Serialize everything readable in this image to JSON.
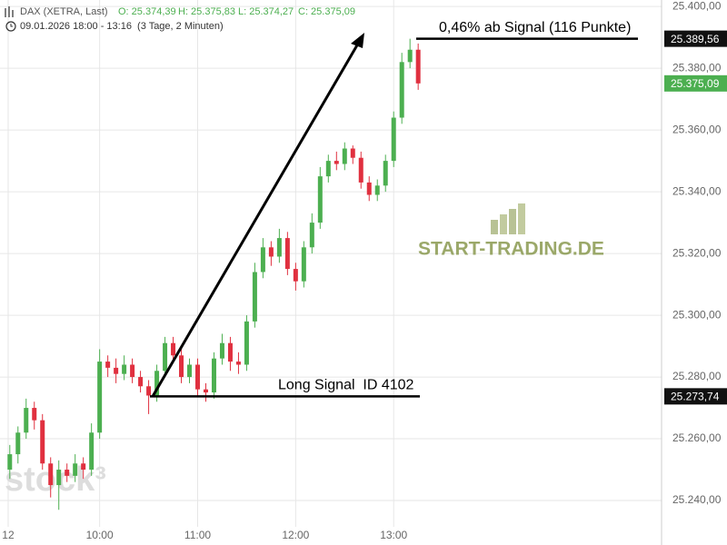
{
  "chart_data": {
    "type": "candlestick",
    "title": "DAX (XETRA, Last)",
    "ohlc_text": [
      "O: 25.374,39",
      "H: 25.375,83",
      "L: 25.374,27",
      "C: 25.375,09"
    ],
    "subtitle": "09.01.2026 18:00 - 13:16  (3 Tage, 2 Minuten)",
    "watermarks": [
      "START-TRADING.DE",
      "stock³"
    ],
    "up_color": "#4caf50",
    "down_color": "#e0303f",
    "grid": true,
    "xlim": [
      "08:59",
      "15:44"
    ],
    "xticks": [
      {
        "value": "09:04",
        "label": "12"
      },
      {
        "value": "10:00",
        "label": "10:00"
      },
      {
        "value": "11:00",
        "label": "11:00"
      },
      {
        "value": "12:00",
        "label": "12:00"
      },
      {
        "value": "13:00",
        "label": "13:00"
      }
    ],
    "ylim": [
      25225.6,
      25402.1
    ],
    "yticks": [
      {
        "value": 25240,
        "label": "25.240,00"
      },
      {
        "value": 25260,
        "label": "25.260,00"
      },
      {
        "value": 25280,
        "label": "25.280,00"
      },
      {
        "value": 25300,
        "label": "25.300,00"
      },
      {
        "value": 25320,
        "label": "25.320,00"
      },
      {
        "value": 25340,
        "label": "25.340,00"
      },
      {
        "value": 25360,
        "label": "25.360,00"
      },
      {
        "value": 25380,
        "label": "25.380,00"
      },
      {
        "value": 25400,
        "label": "25.400,00"
      }
    ],
    "x": [
      "09:05",
      "09:10",
      "09:15",
      "09:20",
      "09:25",
      "09:30",
      "09:35",
      "09:40",
      "09:45",
      "09:50",
      "09:55",
      "10:00",
      "10:05",
      "10:10",
      "10:15",
      "10:20",
      "10:25",
      "10:30",
      "10:35",
      "10:40",
      "10:45",
      "10:50",
      "10:55",
      "11:00",
      "11:05",
      "11:10",
      "11:15",
      "11:20",
      "11:25",
      "11:30",
      "11:35",
      "11:40",
      "11:45",
      "11:50",
      "11:55",
      "12:00",
      "12:05",
      "12:10",
      "12:15",
      "12:20",
      "12:25",
      "12:30",
      "12:35",
      "12:40",
      "12:45",
      "12:50",
      "12:55",
      "13:00",
      "13:05",
      "13:10",
      "13:15"
    ],
    "open": [
      25250,
      25255,
      25262,
      25270,
      25266,
      25252,
      25245,
      25250,
      25248,
      25252,
      25250,
      25262,
      25285,
      25283,
      25281,
      25284,
      25280,
      25277,
      25274,
      25282,
      25291,
      25287,
      25280,
      25284,
      25276,
      25275,
      25286,
      25291,
      25285,
      25284,
      25298,
      25314,
      25322,
      25319,
      25325,
      25315,
      25311,
      25322,
      25330,
      25345,
      25350,
      25349,
      25354,
      25351,
      25343,
      25339,
      25342,
      25350,
      25364,
      25382,
      25386
    ],
    "high": [
      25258,
      25264,
      25273,
      25272,
      25268,
      25254,
      25253,
      25252,
      25255,
      25254,
      25265,
      25289,
      25287,
      25286,
      25287,
      25286,
      25282,
      25279,
      25284,
      25293,
      25293,
      25289,
      25286,
      25286,
      25278,
      25288,
      25294,
      25293,
      25288,
      25300,
      25317,
      25325,
      25324,
      25328,
      25327,
      25317,
      25324,
      25333,
      25348,
      25352,
      25353,
      25356,
      25355,
      25353,
      25345,
      25344,
      25352,
      25366,
      25385,
      25389.56,
      25388
    ],
    "low": [
      25247,
      25252,
      25260,
      25263,
      25250,
      25241,
      25237,
      25246,
      25246,
      25247,
      25248,
      25260,
      25280,
      25278,
      25279,
      25278,
      25275,
      25268,
      25272,
      25280,
      25285,
      25278,
      25278,
      25273.74,
      25272,
      25273,
      25284,
      25282,
      25281,
      25282,
      25296,
      25312,
      25316,
      25317,
      25313,
      25308,
      25309,
      25320,
      25328,
      25343,
      25347,
      25347,
      25349,
      25341,
      25337,
      25337,
      25340,
      25348,
      25362,
      25380,
      25373
    ],
    "close": [
      25255,
      25262,
      25270,
      25266,
      25252,
      25245,
      25250,
      25248,
      25252,
      25250,
      25262,
      25285,
      25283,
      25281,
      25284,
      25280,
      25277,
      25274,
      25282,
      25291,
      25287,
      25280,
      25284,
      25276,
      25275,
      25286,
      25291,
      25285,
      25284,
      25298,
      25314,
      25322,
      25319,
      25325,
      25315,
      25311,
      25322,
      25330,
      25345,
      25350,
      25349,
      25354,
      25351,
      25343,
      25339,
      25342,
      25350,
      25364,
      25382,
      25386,
      25375.09
    ],
    "price_tags": [
      {
        "value": 25389.56,
        "label": "25.389,56",
        "color": "#111111",
        "note": "0,46% ab Signal (116 Punkte)"
      },
      {
        "value": 25375.09,
        "label": "25.375,09",
        "color": "#4caf50"
      },
      {
        "value": 25273.74,
        "label": "25.273,74",
        "color": "#111111",
        "note": "Long Signal  ID 4102"
      }
    ]
  }
}
